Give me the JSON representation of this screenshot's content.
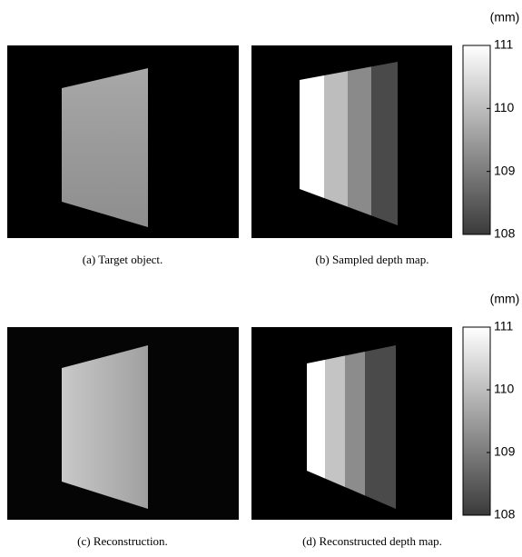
{
  "panels": [
    {
      "caption": "(a) Target object."
    },
    {
      "caption": "(b) Sampled depth map."
    },
    {
      "caption": "(c) Reconstruction."
    },
    {
      "caption": "(d) Reconstructed depth map."
    }
  ],
  "colorbars": [
    {
      "unit": "(mm)",
      "lim": [
        108,
        111
      ],
      "ticks": [
        108,
        109,
        110,
        111
      ]
    },
    {
      "unit": "(mm)",
      "lim": [
        108,
        111
      ],
      "ticks": [
        108,
        109,
        110,
        111
      ]
    }
  ]
}
